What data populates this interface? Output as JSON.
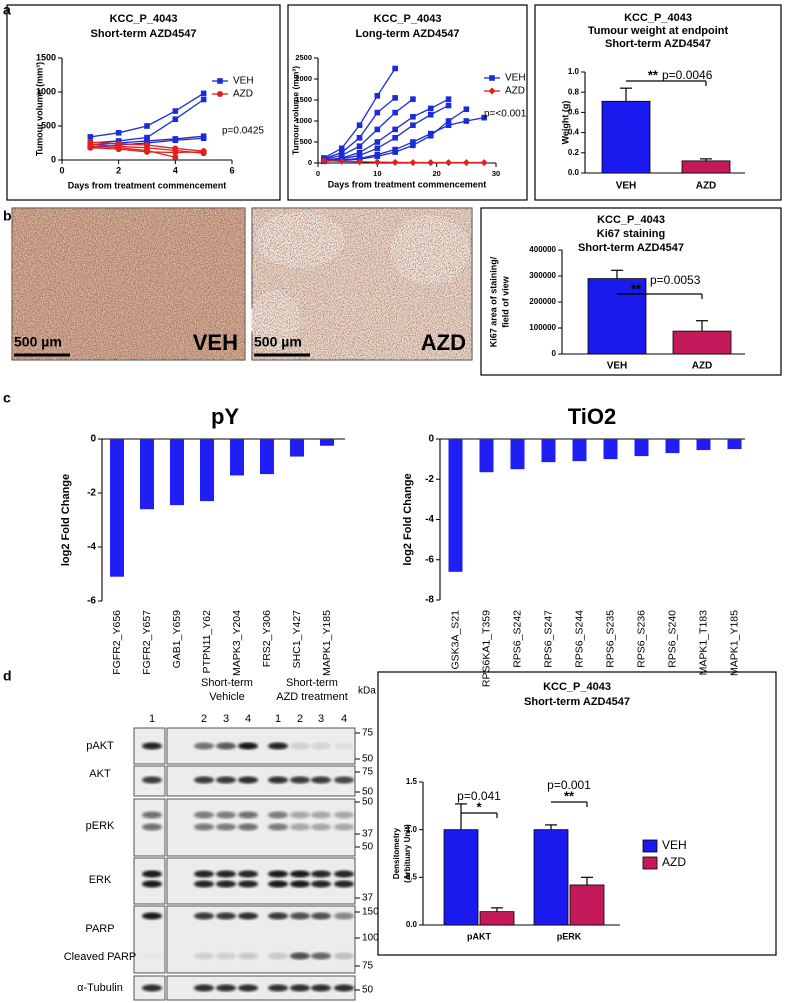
{
  "panel_labels": [
    "a",
    "b",
    "c",
    "d"
  ],
  "micrographs": [
    {
      "label": "VEH",
      "scale_bar": "500 µm"
    },
    {
      "label": "AZD",
      "scale_bar": "500 µm"
    }
  ],
  "western_blot": {
    "groups": [
      [
        "Short-term",
        "Vehicle"
      ],
      [
        "Short-term",
        "AZD treatment"
      ]
    ],
    "lanes": [
      "1",
      "2",
      "3",
      "4",
      "1",
      "2",
      "3",
      "4"
    ],
    "unit": "kDa",
    "rows": [
      "pAKT",
      "AKT",
      "pERK",
      "ERK",
      "PARP",
      "Cleaved PARP",
      "α-Tubulin"
    ],
    "markers": [
      "75",
      "50",
      "75",
      "50",
      "50",
      "37",
      "50",
      "37",
      "150",
      "100",
      "75",
      "50"
    ]
  },
  "chart_data": [
    {
      "type": "line",
      "title": [
        "KCC_P_4043",
        "Short-term AZD4547"
      ],
      "xlabel": "Days from treatment commencement",
      "ylabel": "Tumour volume (mm³)",
      "x": [
        1,
        2,
        3,
        4,
        5
      ],
      "xlim": [
        0,
        6
      ],
      "xticks": [
        0,
        2,
        4,
        6
      ],
      "ylim": [
        0,
        1500
      ],
      "yticks": [
        0,
        500,
        1000,
        1500
      ],
      "annotation": "p=0.0425",
      "series": [
        {
          "name": "VEH",
          "color": "#1a2bd8",
          "marker": "square",
          "values": [
            [
              340,
              400,
              500,
              720,
              980
            ],
            [
              250,
              280,
              330,
              600,
              890
            ],
            [
              220,
              250,
              280,
              310,
              350
            ],
            [
              190,
              220,
              250,
              290,
              320
            ]
          ]
        },
        {
          "name": "AZD",
          "color": "#e0201e",
          "marker": "circle",
          "values": [
            [
              260,
              240,
              220,
              170,
              130
            ],
            [
              230,
              200,
              180,
              140,
              100
            ],
            [
              200,
              180,
              140,
              40,
              null
            ],
            [
              180,
              160,
              120,
              110,
              120
            ]
          ]
        }
      ]
    },
    {
      "type": "line",
      "title": [
        "KCC_P_4043",
        "Long-term AZD4547"
      ],
      "xlabel": "Days from treatment commencement",
      "ylabel": "Tumour volume (mm³)",
      "x": [
        1,
        4,
        7,
        10,
        13,
        16,
        19,
        22,
        25,
        28
      ],
      "xlim": [
        0,
        30
      ],
      "xticks": [
        0,
        10,
        20,
        30
      ],
      "ylim": [
        0,
        2500
      ],
      "yticks": [
        0,
        500,
        1000,
        1500,
        2000,
        2500
      ],
      "annotation": "p=<0.001",
      "series": [
        {
          "name": "VEH",
          "color": "#1a2bd8",
          "marker": "square",
          "values": [
            [
              120,
              350,
              900,
              1600,
              2250,
              null,
              null,
              null,
              null,
              null
            ],
            [
              100,
              250,
              600,
              1200,
              1550,
              null,
              null,
              null,
              null,
              null
            ],
            [
              90,
              180,
              400,
              800,
              1200,
              1520,
              null,
              null,
              null,
              null
            ],
            [
              70,
              120,
              250,
              500,
              800,
              1100,
              1300,
              1520,
              null,
              null
            ],
            [
              60,
              100,
              180,
              350,
              600,
              900,
              1150,
              1370,
              null,
              null
            ],
            [
              50,
              70,
              110,
              200,
              320,
              500,
              700,
              900,
              1000,
              1080
            ],
            [
              40,
              60,
              90,
              160,
              260,
              420,
              650,
              1000,
              1280,
              null
            ]
          ]
        },
        {
          "name": "AZD",
          "color": "#e0201e",
          "marker": "diamond",
          "values": [
            [
              60,
              40,
              30,
              20,
              15,
              10,
              10,
              10,
              10,
              10
            ]
          ]
        }
      ]
    },
    {
      "type": "bar",
      "title": [
        "KCC_P_4043",
        "Tumour weight at endpoint",
        "Short-term AZD4547"
      ],
      "ylabel": "Weight (g)",
      "categories": [
        "VEH",
        "AZD"
      ],
      "values": [
        0.71,
        0.12
      ],
      "errors": [
        0.13,
        0.02
      ],
      "colors": [
        "#1a1aee",
        "#c41a5c"
      ],
      "ylim": [
        0,
        1
      ],
      "yticks": [
        {
          "value": 0,
          "label": "0.0"
        },
        0.2,
        0.4,
        0.6,
        0.8,
        {
          "value": 1,
          "label": "1.0"
        }
      ],
      "significance": {
        "stars": "**",
        "label": "p=0.0046"
      }
    },
    {
      "type": "bar",
      "title": [
        "KCC_P_4043",
        "Ki67 staining",
        "Short-term AZD4547"
      ],
      "ylabel": [
        "Ki67 area of staining/",
        "field of view"
      ],
      "categories": [
        "VEH",
        "AZD"
      ],
      "values": [
        290000,
        88000
      ],
      "errors": [
        32000,
        40000
      ],
      "colors": [
        "#1a1aee",
        "#c41a5c"
      ],
      "ylim": [
        0,
        400000
      ],
      "yticks": [
        0,
        100000,
        200000,
        300000,
        400000
      ],
      "significance": {
        "stars": "**",
        "label": "p=0.0053"
      }
    },
    {
      "type": "bar",
      "title": "pY",
      "ylabel": "log2 Fold Change",
      "color": "#1f1ff5",
      "categories": [
        "FGFR2_Y656",
        "FGFR2_Y657",
        "GAB1_Y659",
        "PTPN11_Y62",
        "MAPK3_Y204",
        "FRS2_Y306",
        "SHC1_Y427",
        "MAPK1_Y185"
      ],
      "values": [
        -5.1,
        -2.6,
        -2.45,
        -2.3,
        -1.35,
        -1.3,
        -0.65,
        -0.25
      ],
      "ylim": [
        -6,
        0
      ],
      "yticks": [
        0,
        -2,
        -4,
        -6
      ]
    },
    {
      "type": "bar",
      "title": "TiO2",
      "ylabel": "log2 Fold Change",
      "color": "#1f1ff5",
      "categories": [
        "GSK3A_S21",
        "RPS6KA1_T359",
        "RPS6_S242",
        "RPS6_S247",
        "RPS6_S244",
        "RPS6_S235",
        "RPS6_S236",
        "RPS6_S240",
        "MAPK1_T183",
        "MAPK1_Y185"
      ],
      "values": [
        -6.6,
        -1.65,
        -1.5,
        -1.15,
        -1.1,
        -1.0,
        -0.85,
        -0.7,
        -0.55,
        -0.5
      ],
      "ylim": [
        -8,
        0
      ],
      "yticks": [
        0,
        -2,
        -4,
        -6,
        -8
      ]
    },
    {
      "type": "bar",
      "title": [
        "KCC_P_4043",
        "Short-term AZD4547"
      ],
      "ylabel": [
        "Densitometry",
        "(Arbituary Unit)"
      ],
      "categories": [
        "pAKT",
        "pERK"
      ],
      "series": [
        {
          "name": "VEH",
          "color": "#1a1aee",
          "values": [
            1,
            1
          ],
          "errors": [
            0.27,
            0.05
          ]
        },
        {
          "name": "AZD",
          "color": "#c41a5c",
          "values": [
            0.14,
            0.42
          ],
          "errors": [
            0.04,
            0.08
          ]
        }
      ],
      "ylim": [
        0,
        1.5
      ],
      "yticks": [
        {
          "value": 0,
          "label": "0.0"
        },
        0.5,
        {
          "value": 1,
          "label": "1.0"
        },
        1.5
      ],
      "significance": [
        {
          "stars": "*",
          "label": "p=0.041"
        },
        {
          "stars": "**",
          "label": "p=0.001"
        }
      ]
    }
  ]
}
